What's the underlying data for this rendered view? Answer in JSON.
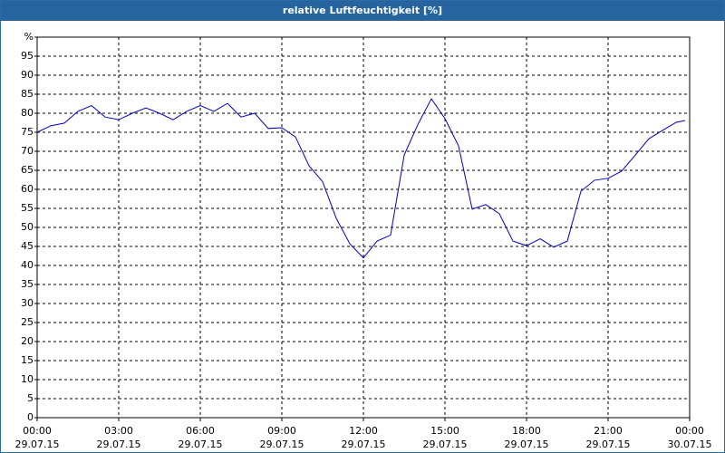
{
  "chart_data": {
    "type": "line",
    "title": "relative Luftfeuchtigkeit [%]",
    "x": [
      0,
      0.5,
      1,
      1.5,
      2,
      2.5,
      3,
      3.5,
      4,
      4.5,
      5,
      5.5,
      6,
      6.5,
      7,
      7.5,
      8,
      8.5,
      9,
      9.5,
      10,
      10.5,
      11,
      11.5,
      12,
      12.5,
      13,
      13.5,
      14,
      14.5,
      15,
      15.5,
      16,
      16.5,
      17,
      17.5,
      18,
      18.5,
      19,
      19.5,
      20,
      20.5,
      21,
      21.5,
      22,
      22.5,
      23,
      23.5,
      23.83
    ],
    "series": [
      {
        "name": "relative Luftfeuchtigkeit",
        "color": "#0000c0",
        "values": [
          75,
          76.7,
          77.4,
          80.5,
          82,
          79,
          78.3,
          80,
          81.4,
          80,
          78.3,
          80.5,
          82,
          80.5,
          82.6,
          79,
          80,
          76,
          76.2,
          73.8,
          66.2,
          62,
          52.4,
          45.7,
          42,
          46.4,
          48,
          69,
          77,
          83.8,
          78.6,
          71.4,
          54.8,
          56,
          53.6,
          46.4,
          45.2,
          47,
          44.8,
          46.4,
          59.5,
          62.4,
          62.9,
          64.8,
          69,
          73.3,
          75.5,
          77.6,
          78.1
        ]
      }
    ],
    "xlim": [
      0,
      24
    ],
    "xticks": [
      {
        "value": 0,
        "label": "00:00"
      },
      {
        "value": 3,
        "label": "03:00"
      },
      {
        "value": 6,
        "label": "06:00"
      },
      {
        "value": 9,
        "label": "09:00"
      },
      {
        "value": 12,
        "label": "12:00"
      },
      {
        "value": 15,
        "label": "15:00"
      },
      {
        "value": 18,
        "label": "18:00"
      },
      {
        "value": 21,
        "label": "21:00"
      },
      {
        "value": 24,
        "label": "00:00"
      }
    ],
    "xtick_dates": [
      "29.07.15",
      "29.07.15",
      "29.07.15",
      "29.07.15",
      "29.07.15",
      "29.07.15",
      "29.07.15",
      "29.07.15",
      "30.07.15"
    ],
    "ylim": [
      0,
      100
    ],
    "yticks": [
      0,
      5,
      10,
      15,
      20,
      25,
      30,
      35,
      40,
      45,
      50,
      55,
      60,
      65,
      70,
      75,
      80,
      85,
      90,
      95,
      {
        "value": 100,
        "label": "%"
      }
    ],
    "grid": true
  }
}
